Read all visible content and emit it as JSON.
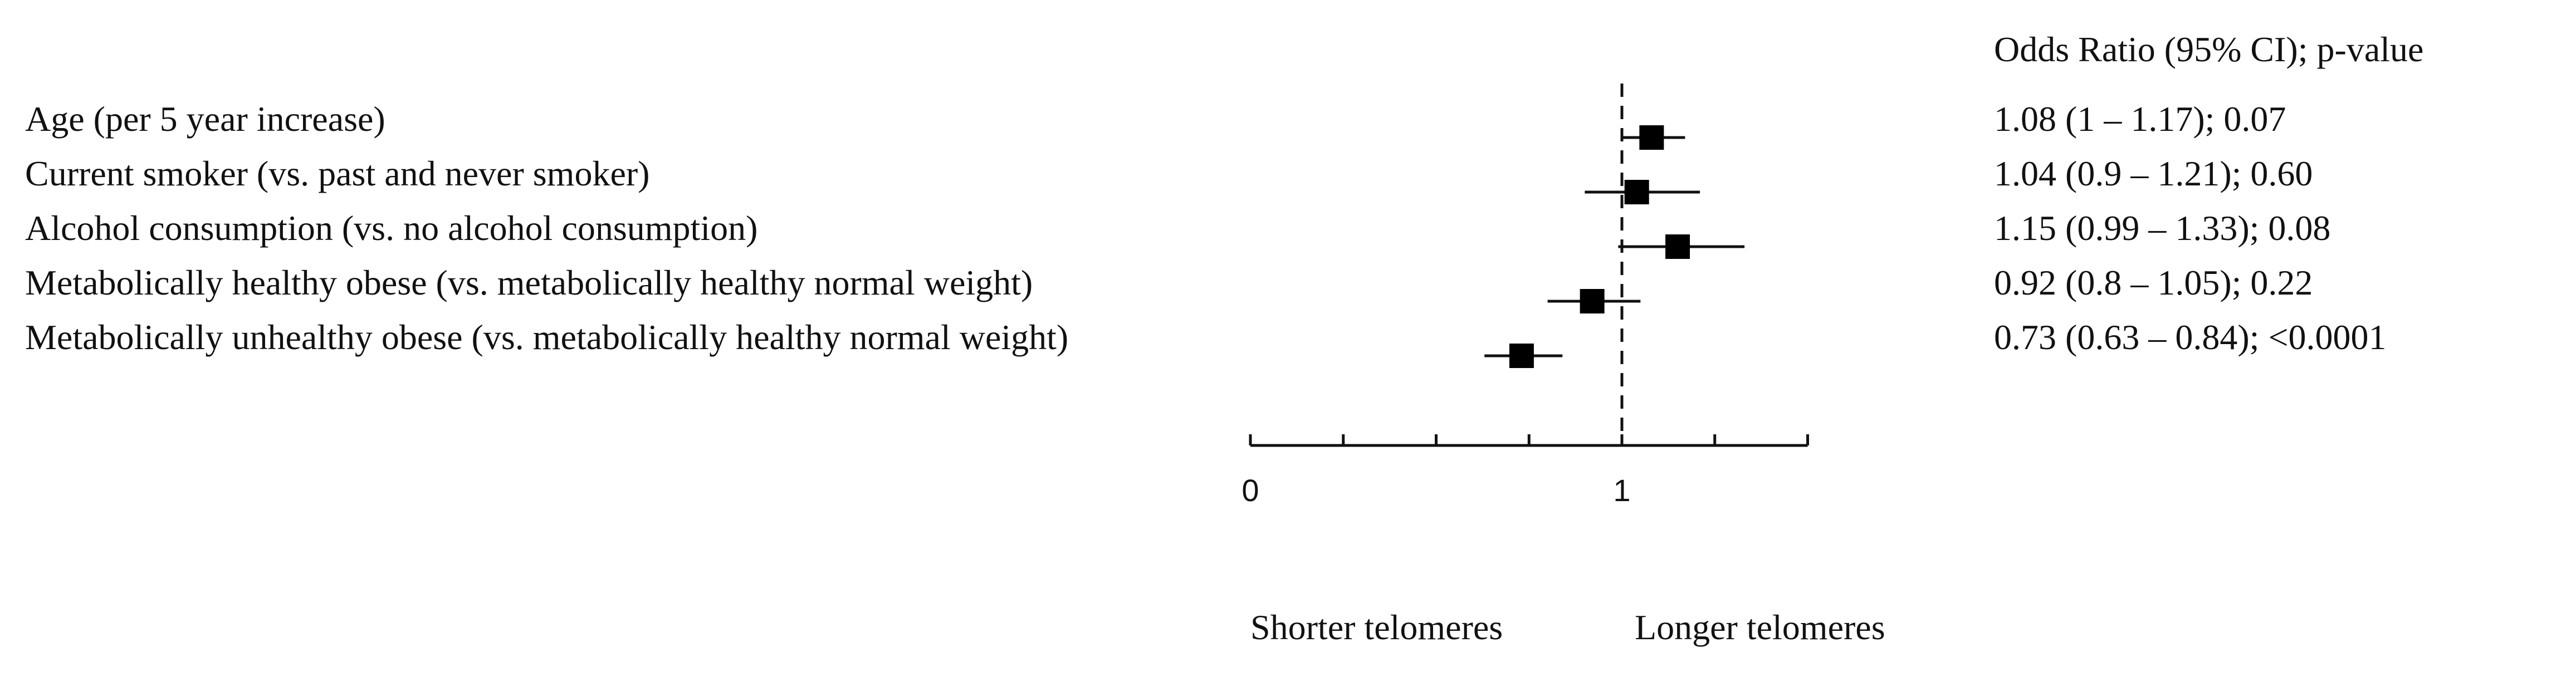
{
  "chart_data": {
    "type": "forest",
    "column_header": "Odds Ratio (95% CI); p-value",
    "rows": [
      {
        "label": "Age (per 5 year increase)",
        "or": 1.08,
        "lo": 1.0,
        "hi": 1.17,
        "text": "1.08 (1 – 1.17); 0.07"
      },
      {
        "label": "Current smoker (vs. past and never smoker)",
        "or": 1.04,
        "lo": 0.9,
        "hi": 1.21,
        "text": "1.04 (0.9 – 1.21); 0.60"
      },
      {
        "label": "Alcohol consumption  (vs. no alcohol consumption)",
        "or": 1.15,
        "lo": 0.99,
        "hi": 1.33,
        "text": "1.15 (0.99 – 1.33); 0.08"
      },
      {
        "label": "Metabolically healthy obese (vs. metabolically healthy normal weight)",
        "or": 0.92,
        "lo": 0.8,
        "hi": 1.05,
        "text": "0.92 (0.8 – 1.05); 0.22"
      },
      {
        "label": "Metabolically unhealthy obese (vs. metabolically healthy normal weight)",
        "or": 0.73,
        "lo": 0.63,
        "hi": 0.84,
        "text": "0.73 (0.63 – 0.84); <0.0001"
      }
    ],
    "x_axis": {
      "range": [
        0,
        1.5
      ],
      "reference_line": 1,
      "minor_tick_step": 0.25,
      "tick_labels": [
        {
          "value": 0,
          "label": "0"
        },
        {
          "value": 1,
          "label": "1"
        }
      ]
    },
    "direction_labels": {
      "left": "Shorter telomeres",
      "right": "Longer telomeres"
    }
  }
}
